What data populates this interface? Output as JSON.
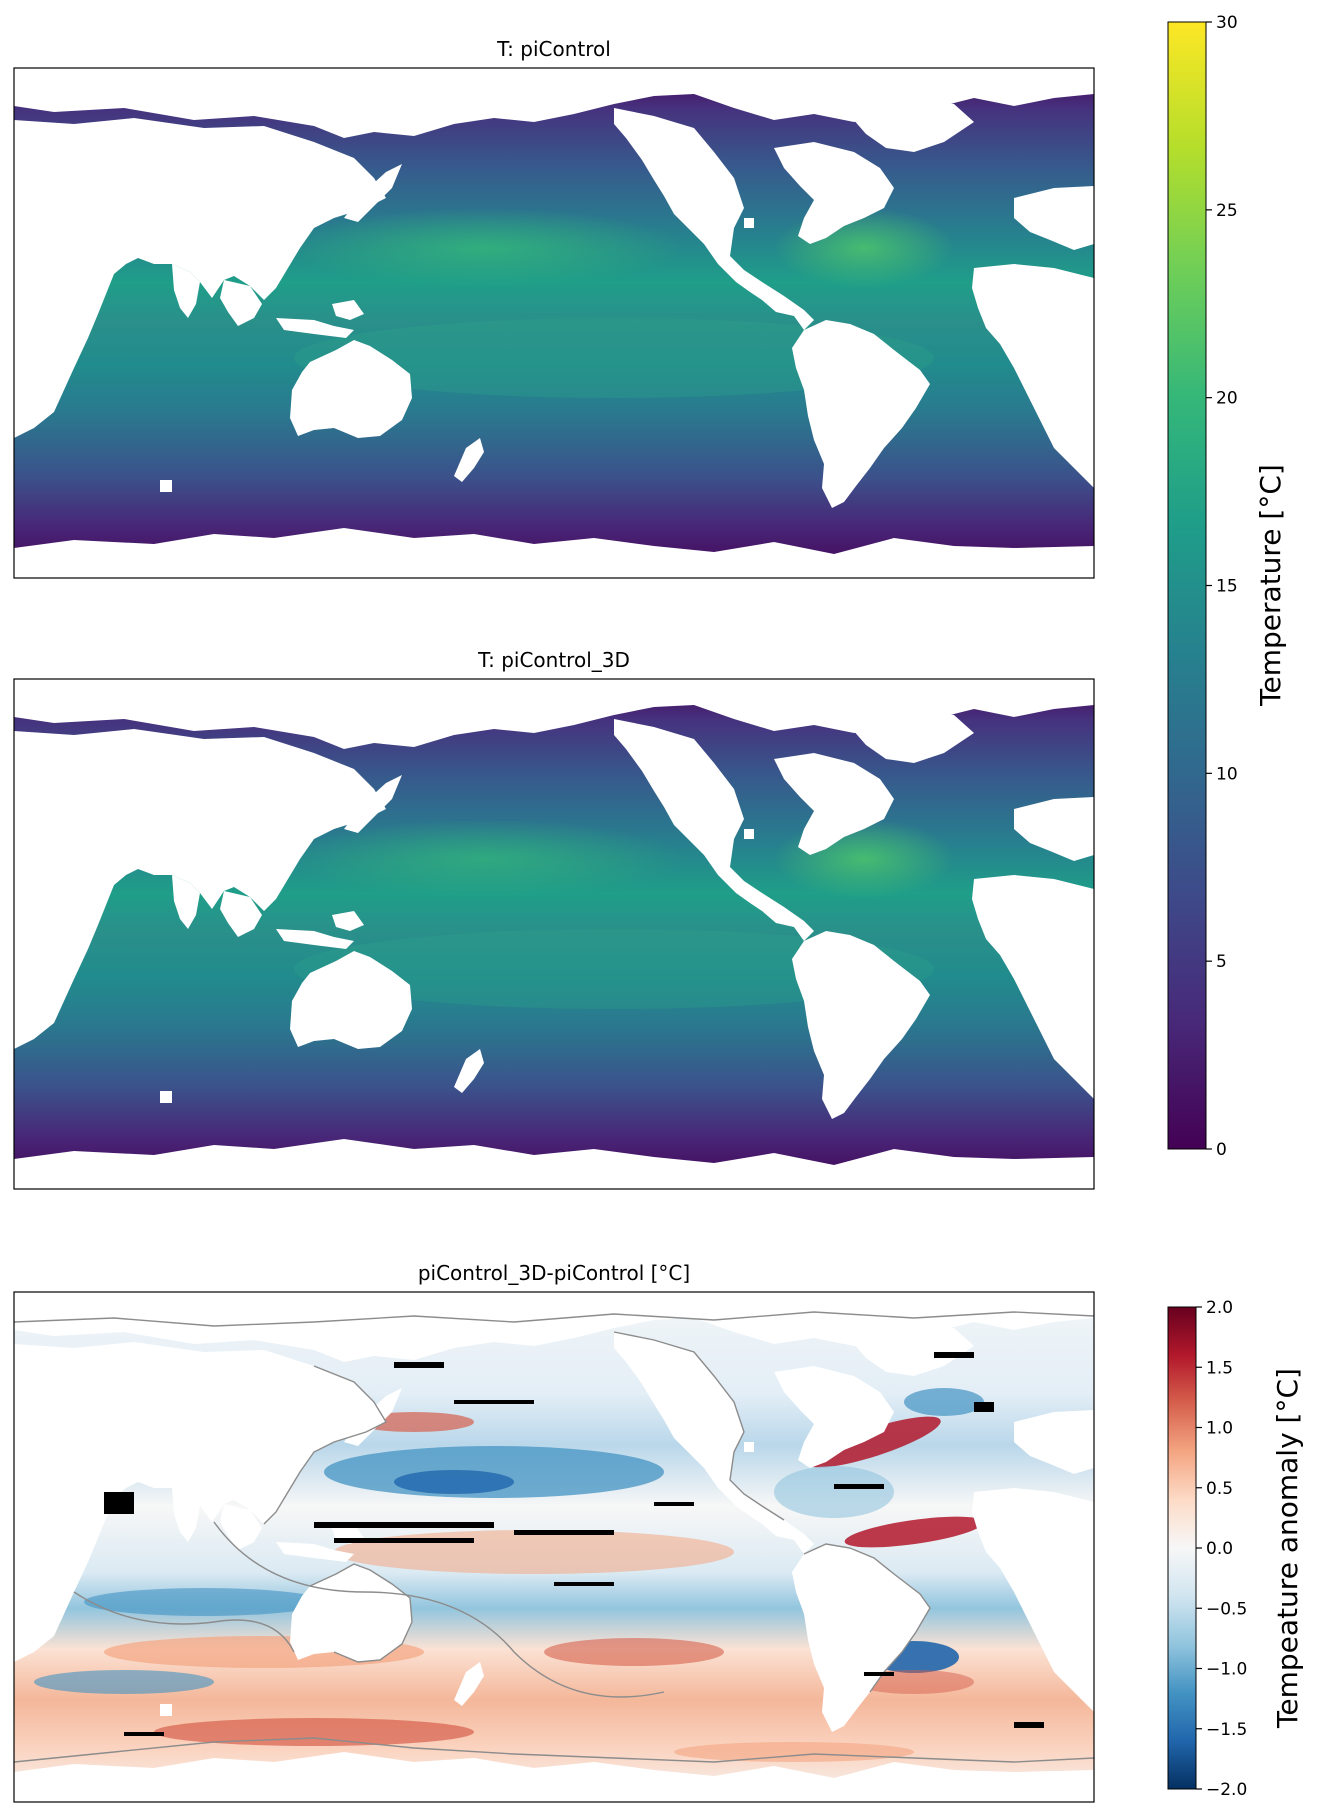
{
  "chart_data": [
    {
      "type": "heatmap",
      "title": "T: piControl",
      "colorbar_label": "Temperature [°C]",
      "colormap": "viridis",
      "vmin": 0,
      "vmax": 30,
      "colorbar_ticks": [
        "0",
        "5",
        "10",
        "15",
        "20",
        "25",
        "30"
      ],
      "colorbar_tick_values": [
        0,
        5,
        10,
        15,
        20,
        25,
        30
      ]
    },
    {
      "type": "heatmap",
      "title": "T: piControl_3D",
      "colorbar_label": "Temperature [°C]",
      "colormap": "viridis",
      "vmin": 0,
      "vmax": 30
    },
    {
      "type": "heatmap",
      "title": "piControl_3D-piControl [°C]",
      "colorbar_label": "Tempeature anomaly [°C]",
      "colormap": "RdBu_r",
      "vmin": -2.0,
      "vmax": 2.0,
      "colorbar_ticks": [
        "2.0",
        "1.5",
        "1.0",
        "0.5",
        "0.0",
        "−0.5",
        "−1.0",
        "−1.5",
        "−2.0"
      ],
      "colorbar_tick_values": [
        2.0,
        1.5,
        1.0,
        0.5,
        0.0,
        -0.5,
        -1.0,
        -1.5,
        -2.0
      ]
    }
  ],
  "colors": {
    "viridis": [
      "#440154",
      "#482878",
      "#3e4989",
      "#31688e",
      "#26828e",
      "#1f9e89",
      "#35b779",
      "#6ece58",
      "#b5de2b",
      "#fde725"
    ],
    "rdbu_r": [
      "#053061",
      "#2166ac",
      "#4393c3",
      "#92c5de",
      "#d1e5f0",
      "#f7f7f7",
      "#fddbc7",
      "#f4a582",
      "#d6604d",
      "#b2182b",
      "#67001f"
    ],
    "contour": "#8c8c8c",
    "stipple": "#000000"
  }
}
